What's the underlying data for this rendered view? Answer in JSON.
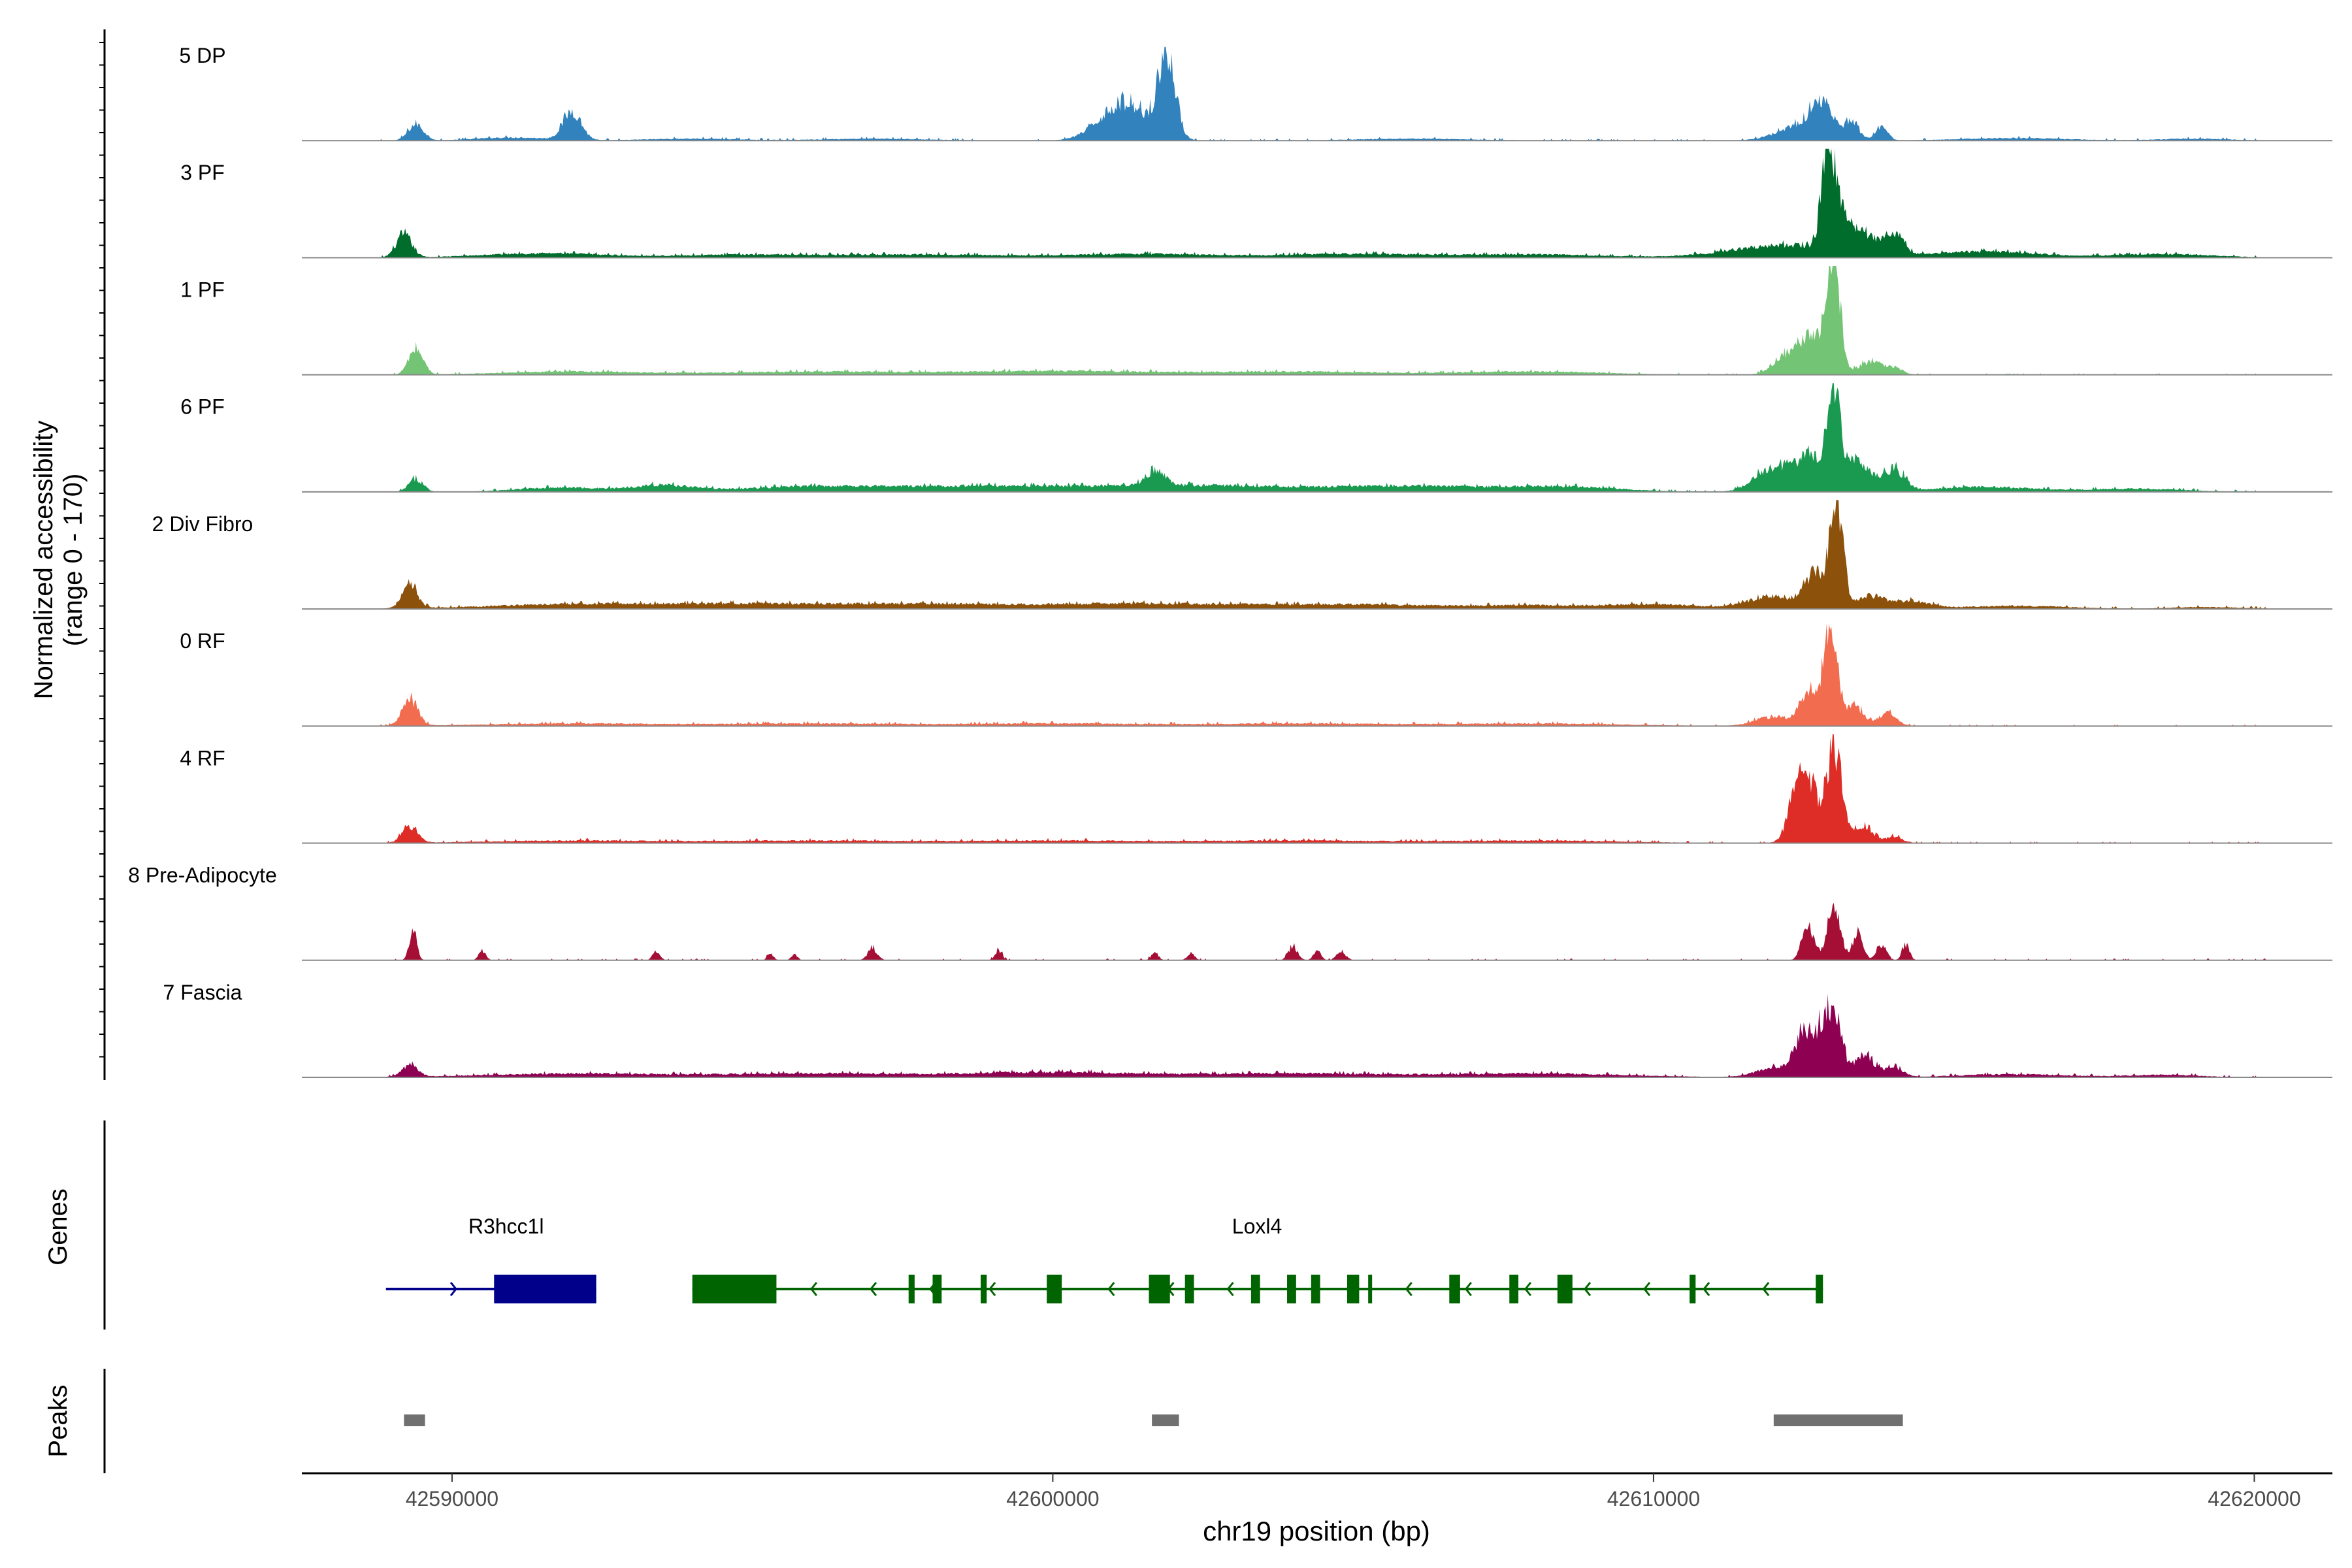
{
  "chart_data": {
    "type": "area",
    "title": "",
    "chromosome": "chr19",
    "xlabel": "chr19 position (bp)",
    "ylabel": "Normalized accessibility",
    "ylabel_sub": "(range 0 - 170)",
    "y_range": [
      0,
      170
    ],
    "xlim": [
      42587500,
      42621300
    ],
    "x_ticks": [
      42590000,
      42600000,
      42610000,
      42620000
    ],
    "x_tick_labels": [
      "42590000",
      "42600000",
      "42610000",
      "42620000"
    ],
    "tracks": [
      {
        "name": "5 DP",
        "color": "#3182bd",
        "peaks": [
          [
            42589400,
            25,
            130
          ],
          [
            42591000,
            5,
            600
          ],
          [
            42592000,
            45,
            150
          ],
          [
            42594000,
            3,
            800
          ],
          [
            42597000,
            3,
            900
          ],
          [
            42601200,
            60,
            400
          ],
          [
            42601900,
            125,
            140
          ],
          [
            42606000,
            3,
            1000
          ],
          [
            42612500,
            25,
            400
          ],
          [
            42612800,
            45,
            180
          ],
          [
            42613300,
            25,
            120
          ],
          [
            42613800,
            20,
            100
          ],
          [
            42616000,
            4,
            900
          ],
          [
            42619000,
            3,
            600
          ]
        ]
      },
      {
        "name": "3 PF",
        "color": "#006d2c",
        "peaks": [
          [
            42589200,
            35,
            130
          ],
          [
            42591500,
            7,
            1000
          ],
          [
            42595000,
            5,
            1200
          ],
          [
            42598000,
            5,
            1200
          ],
          [
            42601500,
            6,
            1200
          ],
          [
            42605000,
            6,
            1200
          ],
          [
            42608000,
            5,
            1200
          ],
          [
            42612200,
            20,
            900
          ],
          [
            42612900,
            165,
            100
          ],
          [
            42613100,
            60,
            150
          ],
          [
            42613500,
            30,
            200
          ],
          [
            42614000,
            35,
            150
          ],
          [
            42615500,
            10,
            900
          ],
          [
            42618500,
            6,
            800
          ]
        ]
      },
      {
        "name": "1 PF",
        "color": "#74c476",
        "peaks": [
          [
            42589400,
            40,
            120
          ],
          [
            42592000,
            5,
            1200
          ],
          [
            42596000,
            5,
            1500
          ],
          [
            42600000,
            6,
            1500
          ],
          [
            42604000,
            5,
            1500
          ],
          [
            42608000,
            5,
            1200
          ],
          [
            42612300,
            35,
            250
          ],
          [
            42612700,
            55,
            180
          ],
          [
            42613000,
            160,
            110
          ],
          [
            42613600,
            20,
            200
          ],
          [
            42614000,
            10,
            150
          ]
        ]
      },
      {
        "name": "6 PF",
        "color": "#1a9a50",
        "peaks": [
          [
            42589400,
            20,
            120
          ],
          [
            42591800,
            7,
            700
          ],
          [
            42593500,
            10,
            500
          ],
          [
            42596000,
            8,
            1200
          ],
          [
            42599000,
            9,
            1500
          ],
          [
            42601700,
            25,
            150
          ],
          [
            42602500,
            10,
            1500
          ],
          [
            42606000,
            9,
            1200
          ],
          [
            42608500,
            8,
            900
          ],
          [
            42612000,
            40,
            300
          ],
          [
            42612600,
            55,
            200
          ],
          [
            42613000,
            165,
            110
          ],
          [
            42613400,
            50,
            200
          ],
          [
            42614000,
            35,
            180
          ],
          [
            42615500,
            8,
            800
          ],
          [
            42618000,
            5,
            800
          ]
        ]
      },
      {
        "name": "2 Div Fibro",
        "color": "#8c510a",
        "peaks": [
          [
            42589300,
            35,
            130
          ],
          [
            42592000,
            7,
            1500
          ],
          [
            42595000,
            7,
            1500
          ],
          [
            42598000,
            7,
            1500
          ],
          [
            42601500,
            8,
            1500
          ],
          [
            42605000,
            7,
            1500
          ],
          [
            42608000,
            5,
            900
          ],
          [
            42610000,
            7,
            800
          ],
          [
            42612000,
            20,
            400
          ],
          [
            42612700,
            55,
            180
          ],
          [
            42613050,
            170,
            100
          ],
          [
            42613600,
            20,
            250
          ],
          [
            42614300,
            12,
            300
          ],
          [
            42616000,
            5,
            900
          ],
          [
            42619200,
            3,
            600
          ]
        ]
      },
      {
        "name": "0 RF",
        "color": "#f26c4f",
        "peaks": [
          [
            42589300,
            40,
            130
          ],
          [
            42592000,
            4,
            1500
          ],
          [
            42596000,
            4,
            1500
          ],
          [
            42600000,
            4,
            1500
          ],
          [
            42604000,
            4,
            1500
          ],
          [
            42608000,
            4,
            1500
          ],
          [
            42612000,
            15,
            300
          ],
          [
            42612600,
            55,
            150
          ],
          [
            42612950,
            160,
            110
          ],
          [
            42613350,
            30,
            150
          ],
          [
            42613900,
            20,
            150
          ]
        ]
      },
      {
        "name": "4 RF",
        "color": "#de2d26",
        "peaks": [
          [
            42589300,
            25,
            130
          ],
          [
            42592000,
            4,
            1500
          ],
          [
            42596000,
            4,
            1500
          ],
          [
            42600000,
            4,
            1500
          ],
          [
            42604000,
            4,
            1500
          ],
          [
            42608000,
            4,
            1500
          ],
          [
            42612400,
            85,
            150
          ],
          [
            42612600,
            70,
            120
          ],
          [
            42613000,
            150,
            140
          ],
          [
            42613500,
            25,
            150
          ],
          [
            42614000,
            10,
            150
          ]
        ]
      },
      {
        "name": "8 Pre-Adipocyte",
        "color": "#a50f35",
        "peaks": [
          [
            42589350,
            50,
            60
          ],
          [
            42590500,
            15,
            60
          ],
          [
            42593400,
            15,
            60
          ],
          [
            42595300,
            10,
            50
          ],
          [
            42595700,
            10,
            50
          ],
          [
            42597000,
            18,
            80
          ],
          [
            42599100,
            15,
            60
          ],
          [
            42601700,
            12,
            60
          ],
          [
            42602300,
            12,
            60
          ],
          [
            42604000,
            20,
            80
          ],
          [
            42604400,
            15,
            60
          ],
          [
            42604800,
            12,
            80
          ],
          [
            42612500,
            20,
            80
          ],
          [
            42612600,
            45,
            90
          ],
          [
            42613000,
            80,
            110
          ],
          [
            42613400,
            40,
            90
          ],
          [
            42613800,
            25,
            80
          ],
          [
            42614200,
            25,
            60
          ]
        ]
      },
      {
        "name": "7 Fascia",
        "color": "#8e0152",
        "peaks": [
          [
            42589300,
            18,
            130
          ],
          [
            42592000,
            6,
            1500
          ],
          [
            42596000,
            6,
            1500
          ],
          [
            42600000,
            8,
            1500
          ],
          [
            42604000,
            6,
            1500
          ],
          [
            42608000,
            6,
            1500
          ],
          [
            42612000,
            15,
            300
          ],
          [
            42612500,
            65,
            150
          ],
          [
            42612800,
            55,
            140
          ],
          [
            42613000,
            90,
            130
          ],
          [
            42613500,
            35,
            170
          ],
          [
            42614000,
            15,
            150
          ],
          [
            42616000,
            5,
            900
          ],
          [
            42618500,
            4,
            600
          ]
        ]
      }
    ],
    "genes_label": "Genes",
    "genes": [
      {
        "name": "R3hcc1l",
        "strand": "+",
        "color": "#00008b",
        "start": 42588900,
        "end": 42592400,
        "label_pos": 42590900,
        "exons": [
          [
            42590700,
            42592400
          ]
        ]
      },
      {
        "name": "Loxl4",
        "strand": "-",
        "color": "#006400",
        "start": 42594000,
        "end": 42612820,
        "label_pos": 42603400,
        "exons": [
          [
            42594000,
            42595400
          ],
          [
            42597600,
            42597700
          ],
          [
            42598000,
            42598150
          ],
          [
            42598800,
            42598900
          ],
          [
            42599900,
            42600150
          ],
          [
            42601600,
            42601950
          ],
          [
            42602200,
            42602350
          ],
          [
            42603300,
            42603450
          ],
          [
            42603900,
            42604050
          ],
          [
            42604300,
            42604450
          ],
          [
            42604900,
            42605100
          ],
          [
            42605250,
            42605300
          ],
          [
            42606600,
            42606780
          ],
          [
            42607600,
            42607750
          ],
          [
            42608400,
            42608650
          ],
          [
            42610600,
            42610700
          ],
          [
            42612700,
            42612820
          ]
        ]
      }
    ],
    "peaks_label": "Peaks",
    "peak_regions": [
      [
        42589200,
        42589550
      ],
      [
        42601650,
        42602100
      ],
      [
        42612000,
        42614150
      ]
    ]
  }
}
